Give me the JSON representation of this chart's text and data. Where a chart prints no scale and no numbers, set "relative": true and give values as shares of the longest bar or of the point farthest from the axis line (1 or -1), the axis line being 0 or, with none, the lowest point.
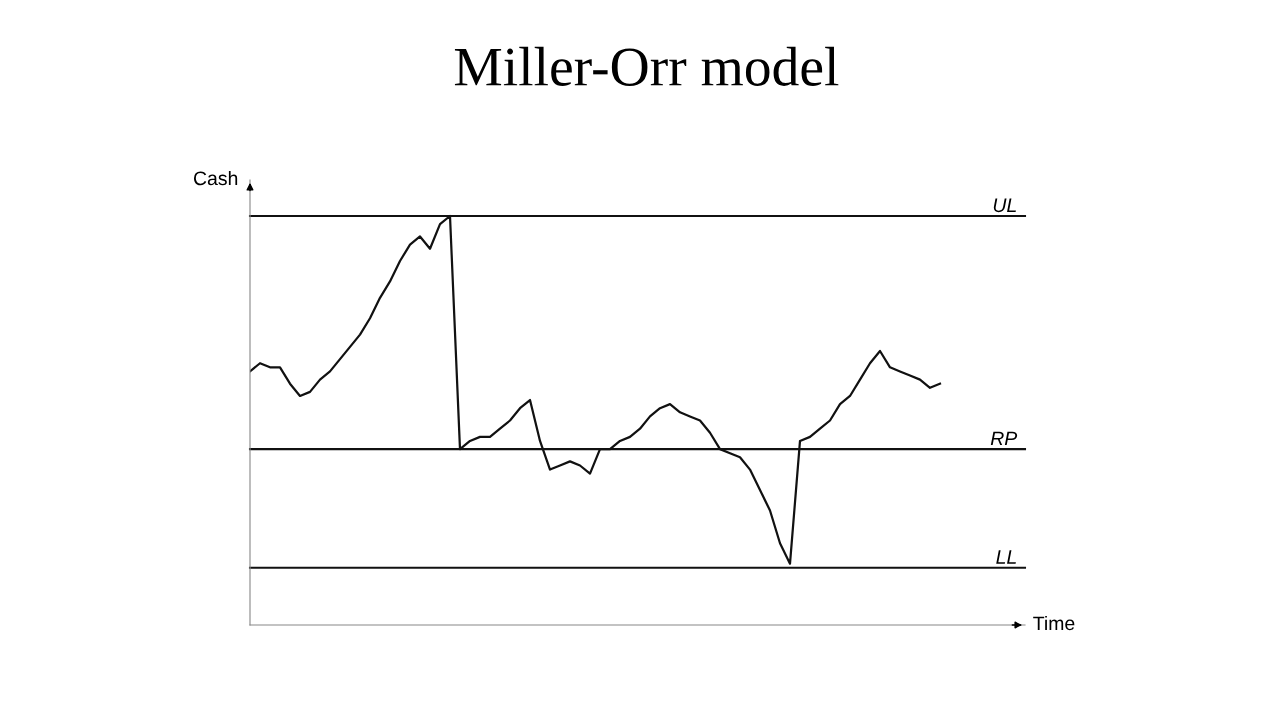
{
  "chart_data": {
    "type": "line",
    "title": "Miller-Orr model",
    "xlabel": "Time",
    "ylabel": "Cash",
    "relative": true,
    "categories": [
      null,
      null,
      null,
      null,
      null,
      null,
      null,
      null,
      null,
      null,
      null,
      null,
      null,
      null,
      null,
      null,
      null,
      null,
      null,
      null,
      null,
      null,
      null,
      null,
      null,
      null,
      null,
      null,
      null,
      null,
      null,
      null,
      null,
      null,
      null,
      null,
      null,
      null,
      null,
      null,
      null,
      null,
      null,
      null,
      null,
      null,
      null,
      null,
      null,
      null,
      null,
      null,
      null,
      null,
      null,
      null,
      null,
      null,
      null,
      null,
      null,
      null,
      null,
      null,
      null,
      null,
      null,
      null,
      null,
      null
    ],
    "series": [
      {
        "color": "#111111",
        "values": [
          0.62,
          0.64,
          0.63,
          0.63,
          0.59,
          0.56,
          0.57,
          0.6,
          0.62,
          0.65,
          0.68,
          0.71,
          0.75,
          0.8,
          0.84,
          0.89,
          0.93,
          0.95,
          0.92,
          0.98,
          1.0,
          0.43,
          0.45,
          0.46,
          0.46,
          0.48,
          0.5,
          0.53,
          0.55,
          0.45,
          0.38,
          0.39,
          0.4,
          0.39,
          0.37,
          0.43,
          0.43,
          0.45,
          0.46,
          0.48,
          0.51,
          0.53,
          0.54,
          0.52,
          0.51,
          0.5,
          0.47,
          0.43,
          0.42,
          0.41,
          0.38,
          0.33,
          0.28,
          0.2,
          0.15,
          0.45,
          0.46,
          0.48,
          0.5,
          0.54,
          0.56,
          0.6,
          0.64,
          0.67,
          0.63,
          0.62,
          0.61,
          0.6,
          0.58,
          0.59
        ]
      }
    ],
    "ref_lines": [
      {
        "axis": "y",
        "value": 1.0,
        "label": "UL",
        "color": "#111111"
      },
      {
        "axis": "y",
        "value": 0.43,
        "label": "RP",
        "color": "#111111"
      },
      {
        "axis": "y",
        "value": 0.14,
        "label": "LL",
        "color": "#111111"
      }
    ],
    "legend": false,
    "marker": "none",
    "line_style": "solid"
  }
}
